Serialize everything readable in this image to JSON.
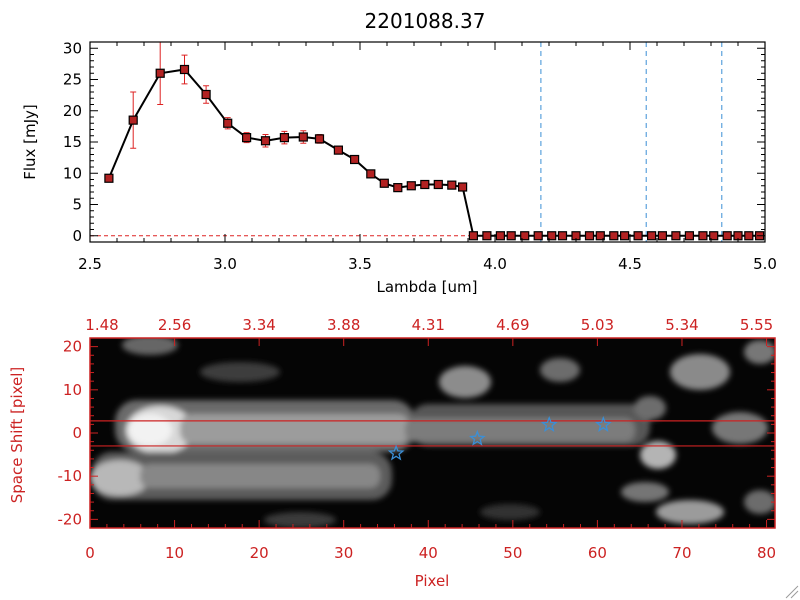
{
  "chart_data": [
    {
      "type": "line",
      "title": "2201088.37",
      "xlabel": "Lambda [um]",
      "ylabel": "Flux [mJy]",
      "xlim": [
        2.5,
        5.0
      ],
      "ylim": [
        -1,
        31
      ],
      "xticks": [
        "2.5",
        "3.0",
        "3.5",
        "4.0",
        "4.5",
        "5.0"
      ],
      "yticks": [
        "0",
        "5",
        "10",
        "15",
        "20",
        "25",
        "30"
      ],
      "colors": {
        "line": "#000000",
        "marker": "#b22222",
        "error": "#dd2222",
        "vline": "#3b8fd6",
        "zero": "#dd2222"
      },
      "series": [
        {
          "x": [
            2.57,
            2.66,
            2.76,
            2.85,
            2.93,
            3.01,
            3.08,
            3.15,
            3.22,
            3.29,
            3.35,
            3.42,
            3.48,
            3.54,
            3.59,
            3.64,
            3.69,
            3.74,
            3.79,
            3.84,
            3.88,
            3.92,
            3.97,
            4.02,
            4.06,
            4.11,
            4.16,
            4.21,
            4.25,
            4.3,
            4.35,
            4.39,
            4.44,
            4.48,
            4.53,
            4.58,
            4.62,
            4.67,
            4.72,
            4.77,
            4.81,
            4.86,
            4.9,
            4.94,
            4.98
          ],
          "y": [
            9.2,
            18.5,
            26.0,
            26.6,
            22.6,
            18.0,
            15.7,
            15.2,
            15.7,
            15.8,
            15.5,
            13.7,
            12.2,
            9.9,
            8.4,
            7.7,
            8.0,
            8.2,
            8.2,
            8.1,
            7.8,
            0,
            0,
            0,
            0,
            0,
            0,
            0,
            0,
            0,
            0,
            0,
            0,
            0,
            0,
            0,
            0,
            0,
            0,
            0,
            0,
            0,
            0,
            0,
            0
          ],
          "yerr": [
            0.5,
            4.5,
            5.0,
            2.3,
            1.4,
            0.9,
            0.8,
            1.0,
            1.0,
            1.0,
            0.7,
            0.5,
            0.5,
            0.4,
            0.3,
            0.3,
            0.3,
            0.3,
            0.3,
            0.3,
            0.3,
            0,
            0,
            0,
            0,
            0,
            0,
            0,
            0,
            0,
            0,
            0,
            0,
            0,
            0,
            0,
            0,
            0,
            0,
            0,
            0,
            0,
            0,
            0,
            0
          ]
        }
      ],
      "vlines": [
        4.17,
        4.56,
        4.84
      ]
    },
    {
      "type": "heatmap",
      "xlabel": "Pixel",
      "ylabel": "Space Shift [pixel]",
      "xlim": [
        0,
        81
      ],
      "ylim": [
        -22,
        22
      ],
      "xticks": [
        "0",
        "10",
        "20",
        "30",
        "40",
        "50",
        "60",
        "70",
        "80"
      ],
      "yticks": [
        "-20",
        "-10",
        "0",
        "10",
        "20"
      ],
      "top_axis_ticks": [
        "1.48",
        "2.56",
        "3.34",
        "3.88",
        "4.31",
        "4.69",
        "5.03",
        "5.34",
        "5.55"
      ],
      "hlines": [
        2.8,
        -3.0
      ],
      "stars": [
        {
          "x": 36.2,
          "y": -4.7
        },
        {
          "x": 45.8,
          "y": -1.3
        },
        {
          "x": 54.3,
          "y": 1.9
        },
        {
          "x": 60.7,
          "y": 1.9
        }
      ],
      "colors": {
        "axis": "#cc2222",
        "star": "#3b8fd6",
        "hline": "#cc2222"
      }
    }
  ]
}
